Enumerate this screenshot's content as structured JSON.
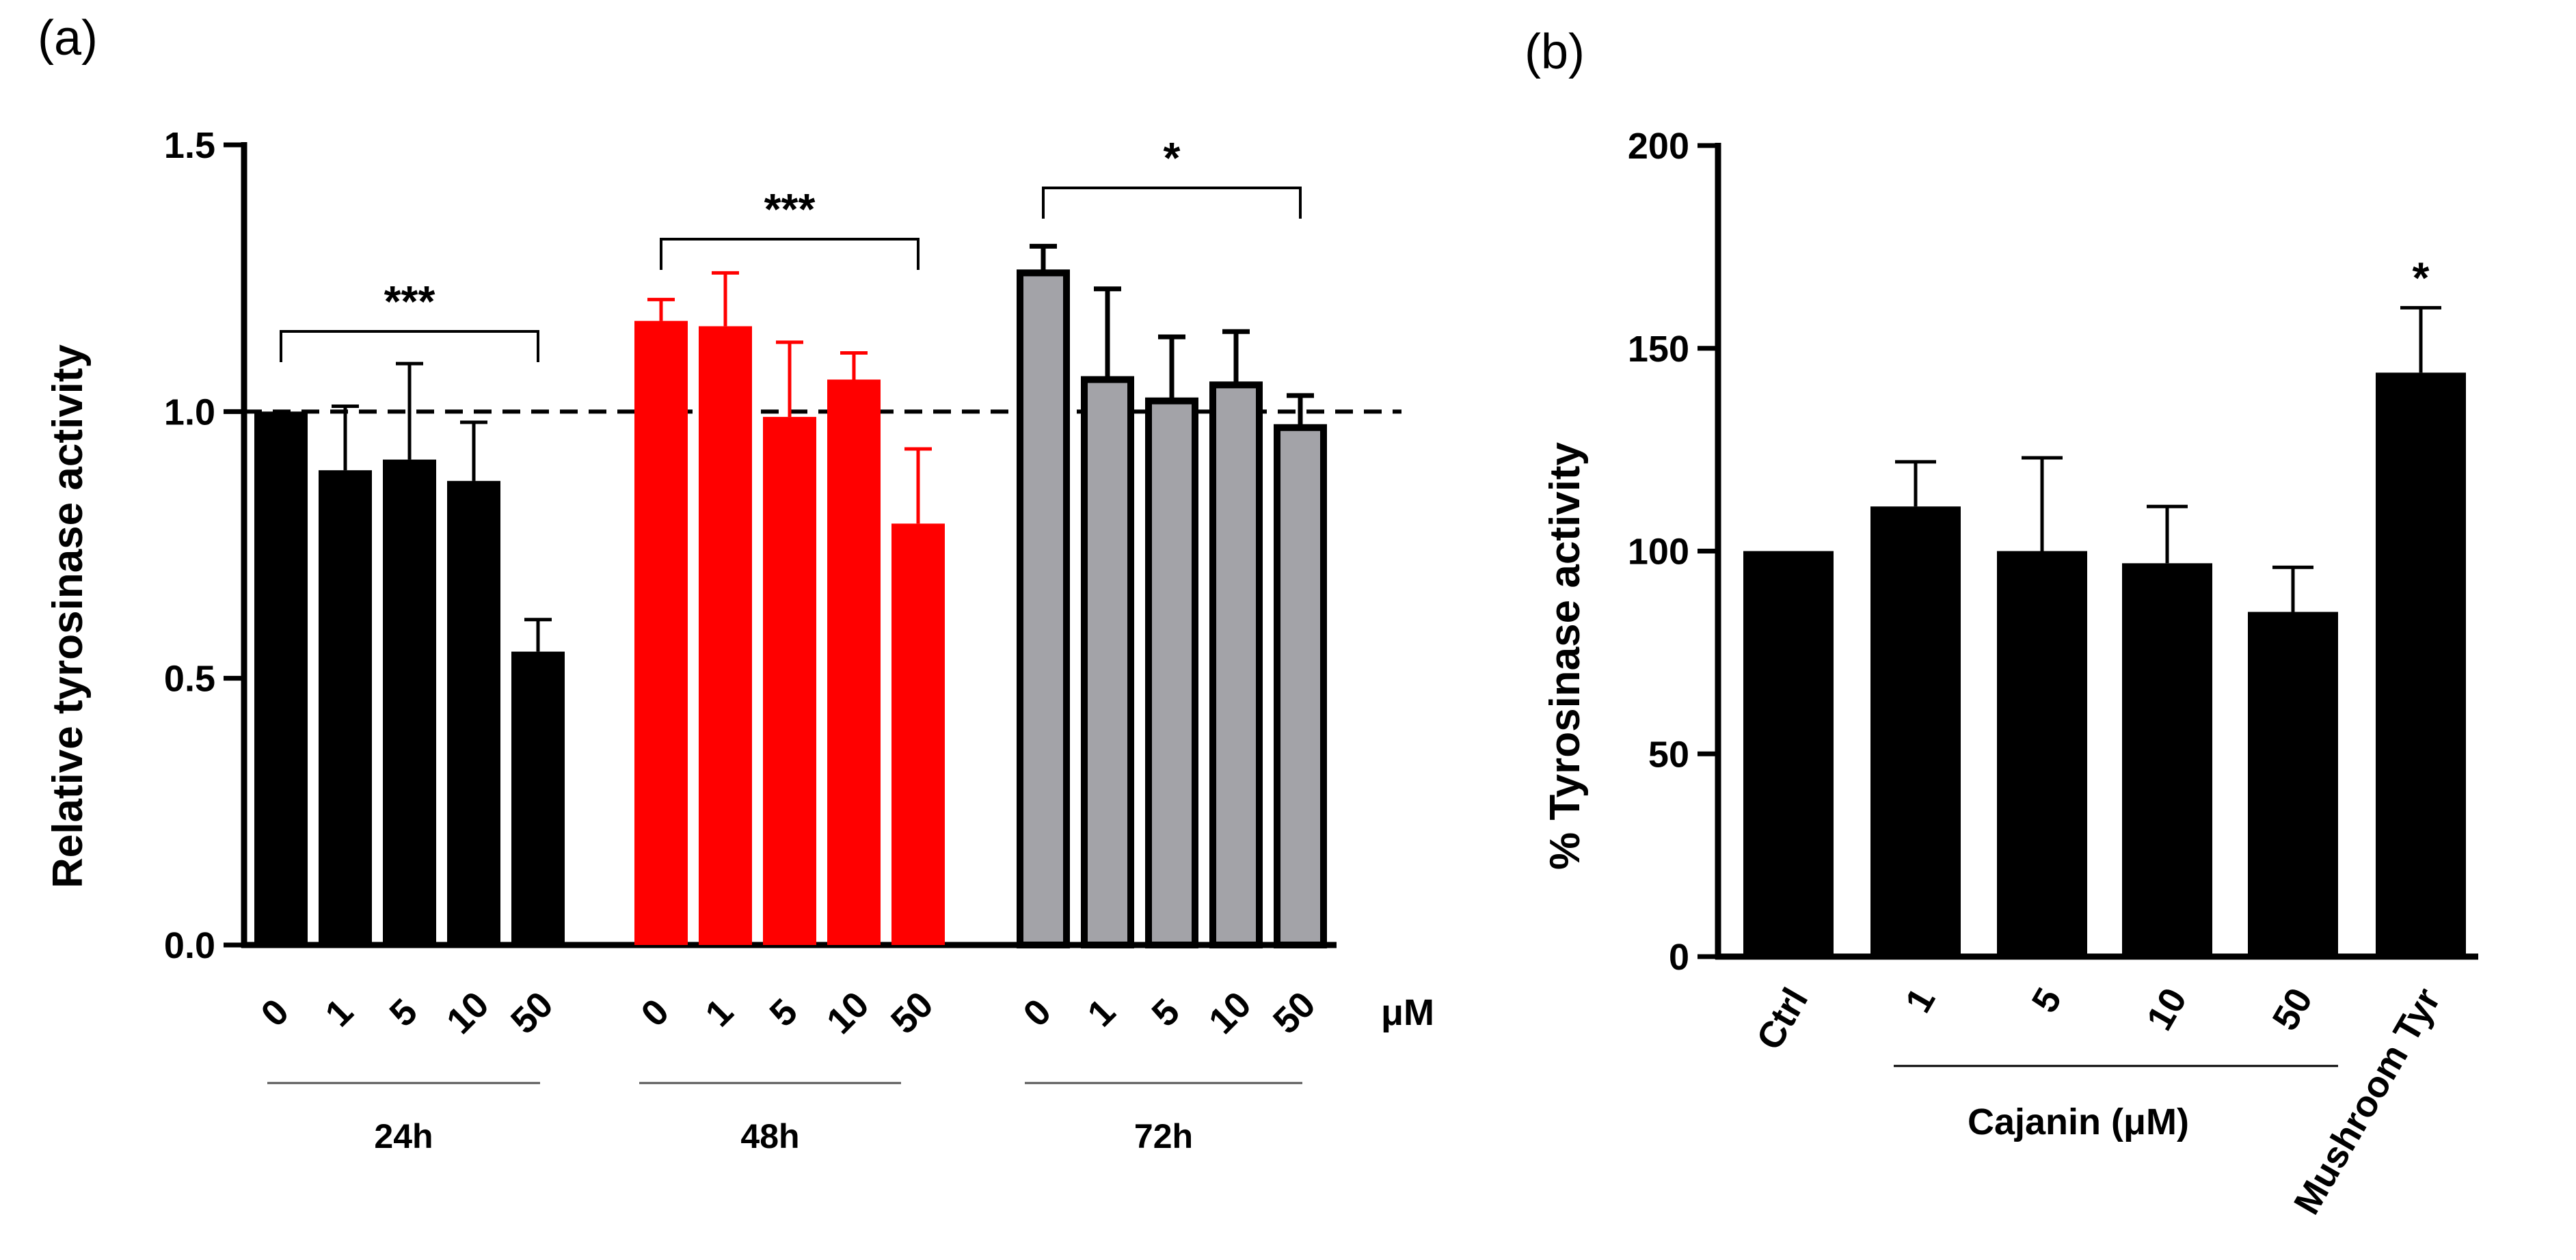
{
  "chart_data": [
    {
      "panel": "(a)",
      "type": "bar",
      "ylabel": "Relative tyrosinase activity",
      "ylim": [
        0,
        1.5
      ],
      "yticks": [
        "0.0",
        "0.5",
        "1.0",
        "1.5"
      ],
      "reference_line": 1.0,
      "unit_label": "μM",
      "groups": [
        {
          "name": "24h",
          "color": "#000000",
          "edge": "#000000",
          "categories": [
            "0",
            "1",
            "5",
            "10",
            "50"
          ],
          "values": [
            1.0,
            0.89,
            0.91,
            0.87,
            0.55
          ],
          "errors": [
            0.0,
            0.12,
            0.18,
            0.11,
            0.06
          ],
          "significance": "***"
        },
        {
          "name": "48h",
          "color": "#ff0000",
          "edge": "#ff0000",
          "categories": [
            "0",
            "1",
            "5",
            "10",
            "50"
          ],
          "values": [
            1.17,
            1.16,
            0.99,
            1.06,
            0.79
          ],
          "errors": [
            0.04,
            0.1,
            0.14,
            0.05,
            0.14
          ],
          "significance": "***"
        },
        {
          "name": "72h",
          "color": "#a3a3a8",
          "edge": "#000000",
          "categories": [
            "0",
            "1",
            "5",
            "10",
            "50"
          ],
          "values": [
            1.26,
            1.06,
            1.02,
            1.05,
            0.97
          ],
          "errors": [
            0.05,
            0.17,
            0.12,
            0.1,
            0.06
          ],
          "significance": "*"
        }
      ]
    },
    {
      "panel": "(b)",
      "type": "bar",
      "ylabel": "% Tyrosinase activity",
      "ylim": [
        0,
        200
      ],
      "yticks": [
        "0",
        "50",
        "100",
        "150",
        "200"
      ],
      "color": "#000000",
      "categories": [
        "Ctrl",
        "1",
        "5",
        "10",
        "50",
        "Mushroom Tyr"
      ],
      "values": [
        100,
        111,
        100,
        97,
        85,
        144
      ],
      "errors": [
        0,
        11,
        23,
        14,
        11,
        16
      ],
      "significance": [
        "",
        "",
        "",
        "",
        "",
        "*"
      ],
      "group_label": "Cajanin (μM)"
    }
  ]
}
